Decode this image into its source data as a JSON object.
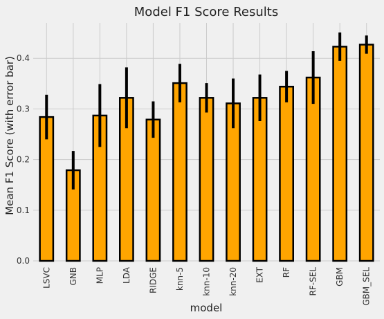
{
  "chart_data": {
    "type": "bar",
    "title": "Model F1 Score Results",
    "xlabel": "model",
    "ylabel": "Mean F1 Score (with error bar)",
    "categories": [
      "LSVC",
      "GNB",
      "MLP",
      "LDA",
      "RIDGE",
      "knn-5",
      "knn-10",
      "knn-20",
      "EXT",
      "RF",
      "RF-SEL",
      "GBM",
      "GBM_SEL"
    ],
    "values": [
      0.284,
      0.179,
      0.287,
      0.322,
      0.279,
      0.351,
      0.322,
      0.311,
      0.322,
      0.344,
      0.362,
      0.423,
      0.427
    ],
    "errors": [
      0.044,
      0.038,
      0.062,
      0.06,
      0.036,
      0.038,
      0.029,
      0.049,
      0.046,
      0.031,
      0.052,
      0.028,
      0.018
    ],
    "ylim": [
      0,
      0.47
    ],
    "yticks": [
      0.0,
      0.1,
      0.2,
      0.3,
      0.4
    ],
    "ytick_labels": [
      "0.0",
      "0.1",
      "0.2",
      "0.3",
      "0.4"
    ],
    "grid": true,
    "bar_color": "#ffa500",
    "edge_color": "#000000",
    "error_color": "#000000",
    "background": "#f0f0f0",
    "grid_color": "#cbcbcb"
  }
}
